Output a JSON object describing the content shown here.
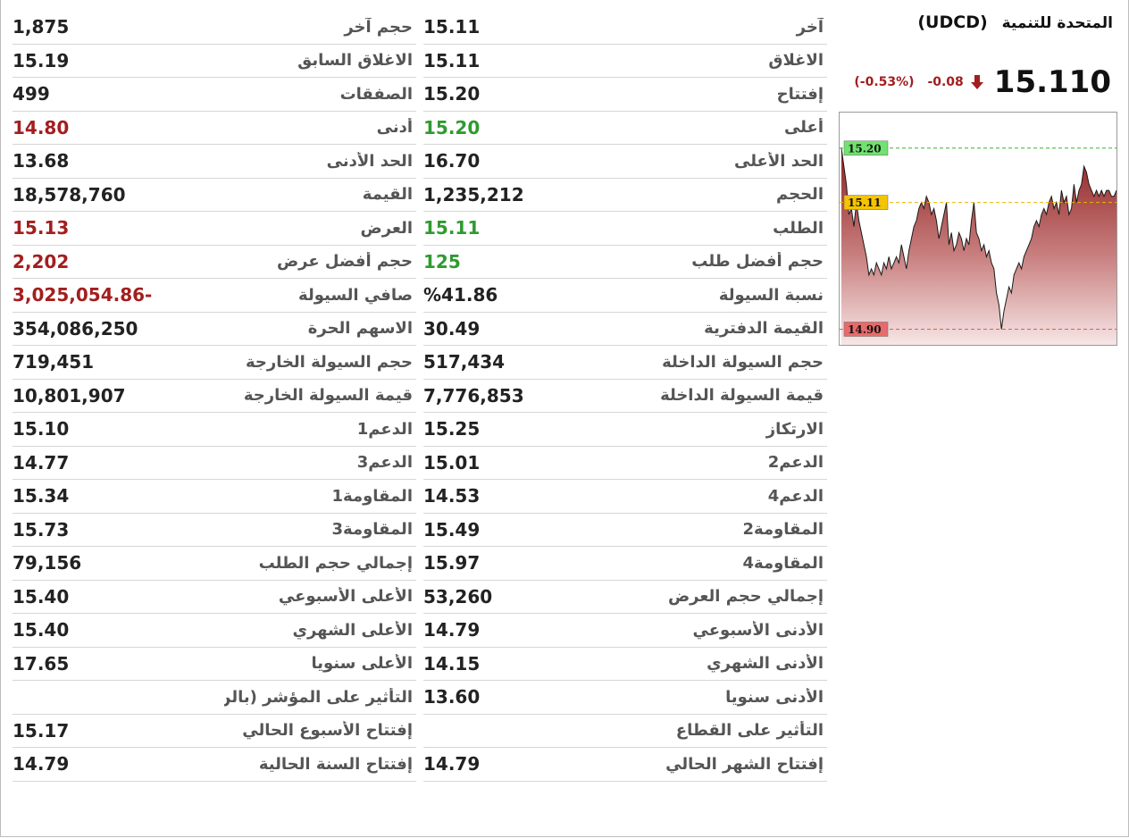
{
  "header": {
    "company_name": "المتحدة للتنمية",
    "ticker": "(UDCD)",
    "price": "15.110",
    "change": "-0.08",
    "change_pct": "(-0.53%)",
    "direction": "down",
    "down_color": "#a31e1e"
  },
  "right_table": [
    {
      "label": "آخر",
      "value": "15.11",
      "tone": "normal"
    },
    {
      "label": "الاغلاق",
      "value": "15.11",
      "tone": "normal"
    },
    {
      "label": "إفتتاح",
      "value": "15.20",
      "tone": "normal"
    },
    {
      "label": "أعلى",
      "value": "15.20",
      "tone": "green"
    },
    {
      "label": "الحد الأعلى",
      "value": "16.70",
      "tone": "normal"
    },
    {
      "label": "الحجم",
      "value": "1,235,212",
      "tone": "normal"
    },
    {
      "label": "الطلب",
      "value": "15.11",
      "tone": "green"
    },
    {
      "label": "حجم أفضل طلب",
      "value": "125",
      "tone": "green"
    },
    {
      "label": "نسبة السيولة",
      "value": "%41.86",
      "tone": "normal"
    },
    {
      "label": "القيمة الدفترية",
      "value": "30.49",
      "tone": "normal"
    },
    {
      "label": "حجم السيولة الداخلة",
      "value": "517,434",
      "tone": "normal"
    },
    {
      "label": "قيمة السيولة الداخلة",
      "value": "7,776,853",
      "tone": "normal"
    },
    {
      "label": "الارتكاز",
      "value": "15.25",
      "tone": "normal"
    },
    {
      "label": "الدعم2",
      "value": "15.01",
      "tone": "normal"
    },
    {
      "label": "الدعم4",
      "value": "14.53",
      "tone": "normal"
    },
    {
      "label": "المقاومة2",
      "value": "15.49",
      "tone": "normal"
    },
    {
      "label": "المقاومة4",
      "value": "15.97",
      "tone": "normal"
    },
    {
      "label": "إجمالي حجم العرض",
      "value": "53,260",
      "tone": "normal"
    },
    {
      "label": "الأدنى الأسبوعي",
      "value": "14.79",
      "tone": "normal"
    },
    {
      "label": "الأدنى الشهري",
      "value": "14.15",
      "tone": "normal"
    },
    {
      "label": "الأدنى سنويا",
      "value": "13.60",
      "tone": "normal"
    },
    {
      "label": "التأثير على القطاع",
      "value": "",
      "tone": "normal"
    },
    {
      "label": "إفتتاح الشهر الحالي",
      "value": "14.79",
      "tone": "normal"
    }
  ],
  "left_table": [
    {
      "label": "حجم آخر",
      "value": "1,875",
      "tone": "normal"
    },
    {
      "label": "الاغلاق السابق",
      "value": "15.19",
      "tone": "normal"
    },
    {
      "label": "الصفقات",
      "value": "499",
      "tone": "normal"
    },
    {
      "label": "أدنى",
      "value": "14.80",
      "tone": "red"
    },
    {
      "label": "الحد الأدنى",
      "value": "13.68",
      "tone": "normal"
    },
    {
      "label": "القيمة",
      "value": "18,578,760",
      "tone": "normal"
    },
    {
      "label": "العرض",
      "value": "15.13",
      "tone": "red"
    },
    {
      "label": "حجم أفضل عرض",
      "value": "2,202",
      "tone": "red"
    },
    {
      "label": "صافي السيولة",
      "value": "3,025,054.86-",
      "tone": "red"
    },
    {
      "label": "الاسهم الحرة",
      "value": "354,086,250",
      "tone": "normal"
    },
    {
      "label": "حجم السيولة الخارجة",
      "value": "719,451",
      "tone": "normal"
    },
    {
      "label": "قيمة السيولة الخارجة",
      "value": "10,801,907",
      "tone": "normal"
    },
    {
      "label": "الدعم1",
      "value": "15.10",
      "tone": "normal"
    },
    {
      "label": "الدعم3",
      "value": "14.77",
      "tone": "normal"
    },
    {
      "label": "المقاومة1",
      "value": "15.34",
      "tone": "normal"
    },
    {
      "label": "المقاومة3",
      "value": "15.73",
      "tone": "normal"
    },
    {
      "label": "إجمالي حجم الطلب",
      "value": "79,156",
      "tone": "normal"
    },
    {
      "label": "الأعلى الأسبوعي",
      "value": "15.40",
      "tone": "normal"
    },
    {
      "label": "الأعلى الشهري",
      "value": "15.40",
      "tone": "normal"
    },
    {
      "label": "الأعلى سنويا",
      "value": "17.65",
      "tone": "normal"
    },
    {
      "label": "التأثير على المؤشر (بالن",
      "value": "",
      "tone": "normal"
    },
    {
      "label": "إفتتاح الأسبوع الحالي",
      "value": "15.17",
      "tone": "normal"
    },
    {
      "label": "إفتتاح السنة الحالية",
      "value": "14.79",
      "tone": "normal"
    }
  ],
  "chart_data": {
    "type": "area",
    "ylim": [
      14.88,
      15.25
    ],
    "reference_lines": [
      {
        "label": "15.20",
        "value": 15.2,
        "color": "#2db82d",
        "label_bg": "#6fe36f"
      },
      {
        "label": "15.11",
        "value": 15.11,
        "color": "#e8b800",
        "label_bg": "#f5c400"
      },
      {
        "label": "14.90",
        "value": 14.9,
        "color": "#e05a5a",
        "label_bg": "#e86a6a"
      }
    ],
    "values": [
      15.2,
      15.17,
      15.14,
      15.09,
      15.1,
      15.07,
      15.11,
      15.08,
      15.06,
      15.04,
      15.02,
      14.99,
      15.0,
      14.99,
      15.01,
      15.0,
      14.99,
      15.01,
      15.0,
      15.02,
      15.0,
      15.01,
      15.02,
      15.01,
      15.04,
      15.02,
      15.0,
      15.03,
      15.05,
      15.07,
      15.08,
      15.1,
      15.11,
      15.1,
      15.12,
      15.11,
      15.09,
      15.1,
      15.08,
      15.05,
      15.07,
      15.09,
      15.11,
      15.04,
      15.06,
      15.03,
      15.04,
      15.06,
      15.05,
      15.03,
      15.05,
      15.04,
      15.08,
      15.11,
      15.06,
      15.05,
      15.03,
      15.04,
      15.02,
      15.03,
      15.01,
      15.0,
      14.96,
      14.94,
      14.9,
      14.93,
      14.95,
      14.97,
      14.96,
      14.99,
      15.0,
      15.01,
      15.0,
      15.02,
      15.03,
      15.04,
      15.05,
      15.07,
      15.08,
      15.07,
      15.09,
      15.1,
      15.09,
      15.11,
      15.12,
      15.1,
      15.11,
      15.09,
      15.13,
      15.11,
      15.12,
      15.09,
      15.1,
      15.14,
      15.11,
      15.13,
      15.14,
      15.17,
      15.16,
      15.14,
      15.13,
      15.12,
      15.13,
      15.12,
      15.13,
      15.12,
      15.13,
      15.13,
      15.12,
      15.12,
      15.13
    ]
  }
}
